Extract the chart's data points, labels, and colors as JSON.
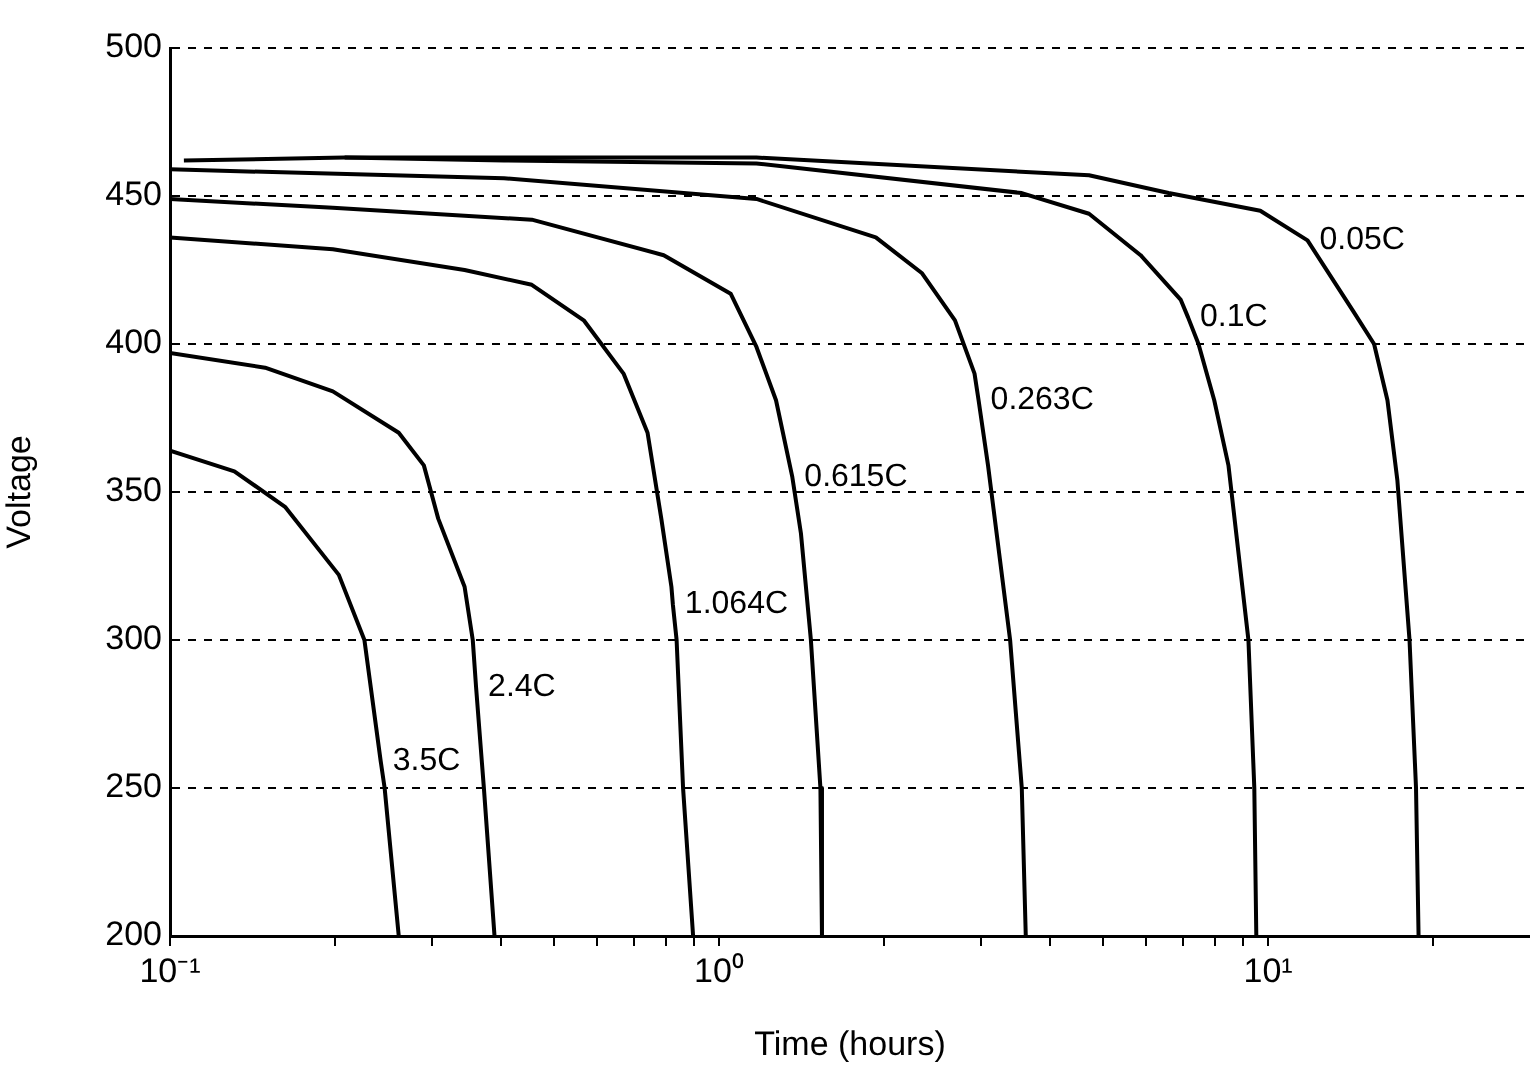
{
  "chart_data": {
    "type": "line",
    "xlabel": "Time (hours)",
    "ylabel": "Voltage",
    "log": "x",
    "grid": "y",
    "legend": false,
    "marker": "none",
    "line_style": "solid",
    "xlim": [
      0.1,
      30
    ],
    "ylim": [
      200,
      500
    ],
    "xticks": [
      {
        "value": 0.1,
        "label": "10⁻¹"
      },
      {
        "value": 0.2,
        "label": null
      },
      {
        "value": 0.3,
        "label": null
      },
      {
        "value": 0.4,
        "label": null
      },
      {
        "value": 0.5,
        "label": null
      },
      {
        "value": 0.6,
        "label": null
      },
      {
        "value": 0.7,
        "label": null
      },
      {
        "value": 0.8,
        "label": null
      },
      {
        "value": 0.9,
        "label": null
      },
      {
        "value": 1,
        "label": "10⁰"
      },
      {
        "value": 2,
        "label": null
      },
      {
        "value": 3,
        "label": null
      },
      {
        "value": 4,
        "label": null
      },
      {
        "value": 5,
        "label": null
      },
      {
        "value": 6,
        "label": null
      },
      {
        "value": 7,
        "label": null
      },
      {
        "value": 8,
        "label": null
      },
      {
        "value": 9,
        "label": null
      },
      {
        "value": 10,
        "label": "10¹"
      },
      {
        "value": 20,
        "label": null
      }
    ],
    "yticks": [
      200,
      250,
      300,
      350,
      400,
      450,
      500
    ],
    "series": [
      {
        "color": "#000000",
        "x": [
          0.106,
          0.208,
          0.406,
          1.17,
          4.72,
          6.59,
          9.68,
          11.8,
          14.3,
          15.6,
          16.5,
          17.2,
          18.1,
          18.6,
          18.8
        ],
        "values": [
          462,
          463,
          463,
          463,
          457,
          451,
          445,
          435,
          411,
          400,
          381,
          354,
          300,
          250,
          200
        ]
      },
      {
        "color": "#000000",
        "x": [
          0.208,
          0.406,
          1.17,
          3.56,
          4.72,
          5.86,
          6.93,
          7.15,
          7.47,
          7.98,
          8.47,
          9.21,
          9.44,
          9.52
        ],
        "values": [
          463,
          462,
          461,
          451,
          444,
          430,
          415,
          409,
          400,
          381,
          359,
          300,
          250,
          200
        ]
      },
      {
        "color": "#000000",
        "x": [
          0.1,
          0.406,
          1.17,
          1.93,
          2.34,
          2.69,
          2.92,
          2.97,
          3.09,
          3.39,
          3.56,
          3.62
        ],
        "values": [
          459,
          456,
          449,
          436,
          424,
          408,
          390,
          381,
          359,
          300,
          250,
          200
        ]
      },
      {
        "color": "#000000",
        "x": [
          0.1,
          0.198,
          0.456,
          0.793,
          1.05,
          1.17,
          1.27,
          1.36,
          1.41,
          1.47,
          1.53,
          1.54
        ],
        "values": [
          449,
          446,
          442,
          430,
          417,
          399,
          381,
          355,
          336,
          300,
          250,
          200
        ]
      },
      {
        "color": "#000000",
        "x": [
          0.1,
          0.198,
          0.344,
          0.456,
          0.567,
          0.67,
          0.741,
          0.785,
          0.819,
          0.824,
          0.837,
          0.86,
          0.897
        ],
        "values": [
          436,
          432,
          425,
          420,
          408,
          390,
          370,
          341,
          318,
          312,
          300,
          250,
          200
        ]
      },
      {
        "color": "#000000",
        "x": [
          0.1,
          0.149,
          0.198,
          0.261,
          0.29,
          0.308,
          0.344,
          0.356,
          0.361,
          0.373,
          0.39
        ],
        "values": [
          397,
          392,
          384,
          370,
          359,
          341,
          318,
          300,
          284,
          250,
          200
        ]
      },
      {
        "color": "#000000",
        "x": [
          0.1,
          0.131,
          0.162,
          0.203,
          0.226,
          0.242,
          0.246,
          0.261
        ],
        "values": [
          364,
          357,
          345,
          322,
          300,
          259,
          250,
          200
        ]
      }
    ],
    "annotations": [
      {
        "text": "0.05C",
        "x": 11.8,
        "y": 435
      },
      {
        "text": "0.1C",
        "x": 7.15,
        "y": 409
      },
      {
        "text": "0.263C",
        "x": 2.97,
        "y": 381
      },
      {
        "text": "0.615C",
        "x": 1.36,
        "y": 355
      },
      {
        "text": "1.064C",
        "x": 0.824,
        "y": 312
      },
      {
        "text": "2.4C",
        "x": 0.361,
        "y": 284
      },
      {
        "text": "3.5C",
        "x": 0.242,
        "y": 259
      }
    ]
  }
}
